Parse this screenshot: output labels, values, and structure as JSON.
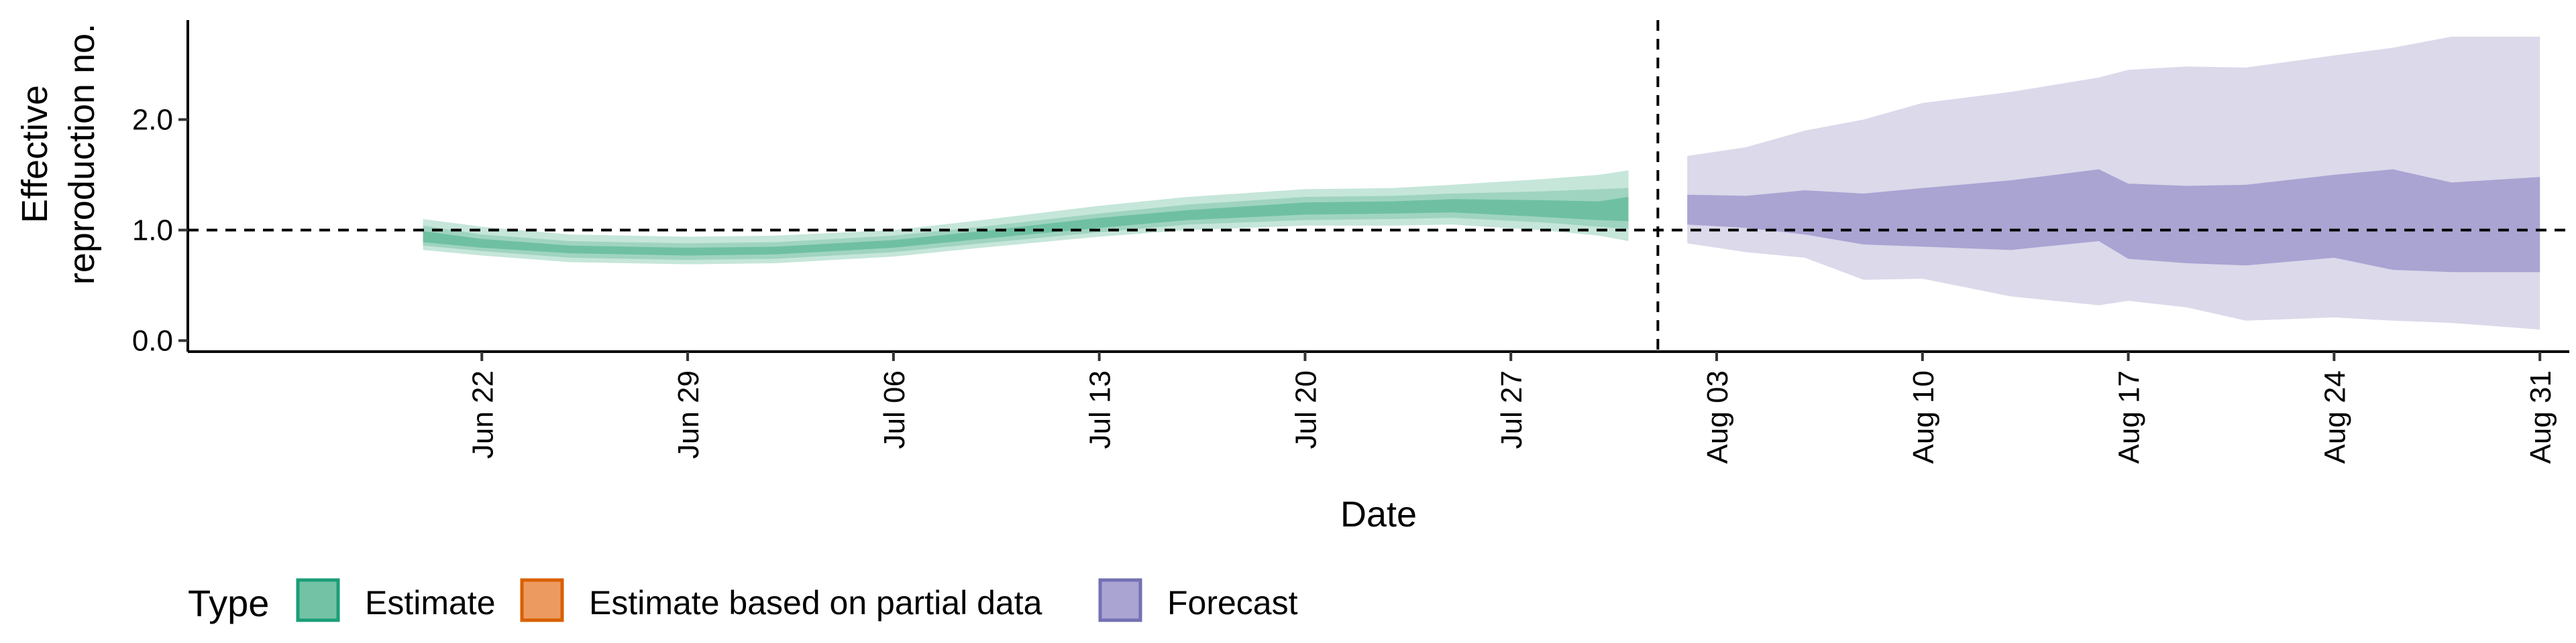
{
  "chart_data": {
    "type": "area",
    "xlabel": "Date",
    "ylabel_lines": [
      "Effective",
      "reproduction no."
    ],
    "ylim": [
      -0.1,
      2.9
    ],
    "yticks": [
      {
        "value": 0.0,
        "label": "0.0"
      },
      {
        "value": 1.0,
        "label": "1.0"
      },
      {
        "value": 2.0,
        "label": "2.0"
      }
    ],
    "xlim": [
      "2020-06-12",
      "2020-09-01"
    ],
    "xticks": [
      {
        "date": "2020-06-22",
        "label": "Jun 22"
      },
      {
        "date": "2020-06-29",
        "label": "Jun 29"
      },
      {
        "date": "2020-07-06",
        "label": "Jul 06"
      },
      {
        "date": "2020-07-13",
        "label": "Jul 13"
      },
      {
        "date": "2020-07-20",
        "label": "Jul 20"
      },
      {
        "date": "2020-07-27",
        "label": "Jul 27"
      },
      {
        "date": "2020-08-03",
        "label": "Aug 03"
      },
      {
        "date": "2020-08-10",
        "label": "Aug 10"
      },
      {
        "date": "2020-08-17",
        "label": "Aug 17"
      },
      {
        "date": "2020-08-24",
        "label": "Aug 24"
      },
      {
        "date": "2020-08-31",
        "label": "Aug 31"
      }
    ],
    "reference_line_y": 1.0,
    "vertical_line_date": "2020-08-01",
    "legend": {
      "title": "Type",
      "placement": "bottom-left",
      "items": [
        {
          "label": "Estimate",
          "fill": "#74c2a5",
          "border": "#1b9e77"
        },
        {
          "label": "Estimate based on partial data",
          "fill": "#ec9a5f",
          "border": "#d95f02"
        },
        {
          "label": "Forecast",
          "fill": "#a9a4d2",
          "border": "#7570b3"
        }
      ]
    },
    "series": [
      {
        "name": "Estimate",
        "color": "#1b9e77",
        "outer_color": "#c6e6da",
        "mid_color": "#9fd4c0",
        "inner_color": "#6fc0a2",
        "points": [
          {
            "date": "2020-06-20",
            "o_lo": 0.82,
            "o_hi": 1.1,
            "m_lo": 0.86,
            "m_hi": 1.04,
            "i_lo": 0.89,
            "i_hi": 0.99
          },
          {
            "date": "2020-06-22",
            "o_lo": 0.77,
            "o_hi": 1.03,
            "m_lo": 0.81,
            "m_hi": 0.96,
            "i_lo": 0.84,
            "i_hi": 0.92
          },
          {
            "date": "2020-06-25",
            "o_lo": 0.71,
            "o_hi": 0.96,
            "m_lo": 0.75,
            "m_hi": 0.9,
            "i_lo": 0.79,
            "i_hi": 0.86
          },
          {
            "date": "2020-06-29",
            "o_lo": 0.69,
            "o_hi": 0.94,
            "m_lo": 0.73,
            "m_hi": 0.88,
            "i_lo": 0.77,
            "i_hi": 0.84
          },
          {
            "date": "2020-07-02",
            "o_lo": 0.7,
            "o_hi": 0.95,
            "m_lo": 0.74,
            "m_hi": 0.89,
            "i_lo": 0.78,
            "i_hi": 0.85
          },
          {
            "date": "2020-07-06",
            "o_lo": 0.76,
            "o_hi": 1.0,
            "m_lo": 0.8,
            "m_hi": 0.95,
            "i_lo": 0.84,
            "i_hi": 0.91
          },
          {
            "date": "2020-07-09",
            "o_lo": 0.84,
            "o_hi": 1.09,
            "m_lo": 0.88,
            "m_hi": 1.03,
            "i_lo": 0.92,
            "i_hi": 0.99
          },
          {
            "date": "2020-07-13",
            "o_lo": 0.94,
            "o_hi": 1.22,
            "m_lo": 0.98,
            "m_hi": 1.15,
            "i_lo": 1.02,
            "i_hi": 1.11
          },
          {
            "date": "2020-07-16",
            "o_lo": 1.0,
            "o_hi": 1.3,
            "m_lo": 1.05,
            "m_hi": 1.23,
            "i_lo": 1.09,
            "i_hi": 1.18
          },
          {
            "date": "2020-07-20",
            "o_lo": 1.04,
            "o_hi": 1.37,
            "m_lo": 1.09,
            "m_hi": 1.3,
            "i_lo": 1.14,
            "i_hi": 1.25
          },
          {
            "date": "2020-07-23",
            "o_lo": 1.04,
            "o_hi": 1.38,
            "m_lo": 1.1,
            "m_hi": 1.31,
            "i_lo": 1.15,
            "i_hi": 1.26
          },
          {
            "date": "2020-07-25",
            "o_lo": 1.05,
            "o_hi": 1.41,
            "m_lo": 1.11,
            "m_hi": 1.33,
            "i_lo": 1.16,
            "i_hi": 1.28
          },
          {
            "date": "2020-07-28",
            "o_lo": 1.0,
            "o_hi": 1.46,
            "m_lo": 1.07,
            "m_hi": 1.35,
            "i_lo": 1.12,
            "i_hi": 1.27
          },
          {
            "date": "2020-07-30",
            "o_lo": 0.95,
            "o_hi": 1.5,
            "m_lo": 1.03,
            "m_hi": 1.37,
            "i_lo": 1.09,
            "i_hi": 1.26
          },
          {
            "date": "2020-07-31",
            "o_lo": 0.9,
            "o_hi": 1.54,
            "m_lo": 1.01,
            "m_hi": 1.38,
            "i_lo": 1.08,
            "i_hi": 1.3
          }
        ]
      },
      {
        "name": "Forecast",
        "color": "#7570b3",
        "outer_color": "#dbd9ea",
        "inner_color": "#a9a4d2",
        "points": [
          {
            "date": "2020-08-02",
            "o_lo": 0.88,
            "o_hi": 1.67,
            "i_lo": 1.05,
            "i_hi": 1.32
          },
          {
            "date": "2020-08-04",
            "o_lo": 0.8,
            "o_hi": 1.75,
            "i_lo": 1.02,
            "i_hi": 1.31
          },
          {
            "date": "2020-08-06",
            "o_lo": 0.75,
            "o_hi": 1.9,
            "i_lo": 0.96,
            "i_hi": 1.36
          },
          {
            "date": "2020-08-08",
            "o_lo": 0.55,
            "o_hi": 2.0,
            "i_lo": 0.87,
            "i_hi": 1.33
          },
          {
            "date": "2020-08-10",
            "o_lo": 0.56,
            "o_hi": 2.15,
            "i_lo": 0.85,
            "i_hi": 1.38
          },
          {
            "date": "2020-08-13",
            "o_lo": 0.4,
            "o_hi": 2.25,
            "i_lo": 0.82,
            "i_hi": 1.45
          },
          {
            "date": "2020-08-16",
            "o_lo": 0.32,
            "o_hi": 2.38,
            "i_lo": 0.9,
            "i_hi": 1.55
          },
          {
            "date": "2020-08-17",
            "o_lo": 0.36,
            "o_hi": 2.45,
            "i_lo": 0.74,
            "i_hi": 1.42
          },
          {
            "date": "2020-08-19",
            "o_lo": 0.3,
            "o_hi": 2.48,
            "i_lo": 0.7,
            "i_hi": 1.4
          },
          {
            "date": "2020-08-21",
            "o_lo": 0.18,
            "o_hi": 2.47,
            "i_lo": 0.68,
            "i_hi": 1.41
          },
          {
            "date": "2020-08-24",
            "o_lo": 0.21,
            "o_hi": 2.58,
            "i_lo": 0.75,
            "i_hi": 1.5
          },
          {
            "date": "2020-08-26",
            "o_lo": 0.18,
            "o_hi": 2.65,
            "i_lo": 0.64,
            "i_hi": 1.55
          },
          {
            "date": "2020-08-28",
            "o_lo": 0.16,
            "o_hi": 2.75,
            "i_lo": 0.62,
            "i_hi": 1.43
          },
          {
            "date": "2020-08-31",
            "o_lo": 0.1,
            "o_hi": 2.75,
            "i_lo": 0.62,
            "i_hi": 1.48
          }
        ]
      }
    ]
  }
}
